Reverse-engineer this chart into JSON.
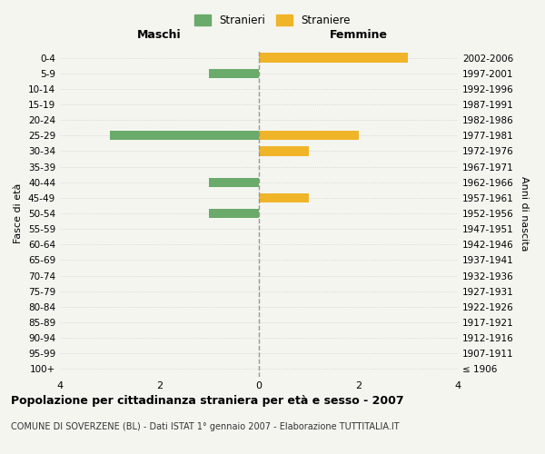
{
  "age_groups": [
    "100+",
    "95-99",
    "90-94",
    "85-89",
    "80-84",
    "75-79",
    "70-74",
    "65-69",
    "60-64",
    "55-59",
    "50-54",
    "45-49",
    "40-44",
    "35-39",
    "30-34",
    "25-29",
    "20-24",
    "15-19",
    "10-14",
    "5-9",
    "0-4"
  ],
  "birth_years": [
    "≤ 1906",
    "1907-1911",
    "1912-1916",
    "1917-1921",
    "1922-1926",
    "1927-1931",
    "1932-1936",
    "1937-1941",
    "1942-1946",
    "1947-1951",
    "1952-1956",
    "1957-1961",
    "1962-1966",
    "1967-1971",
    "1972-1976",
    "1977-1981",
    "1982-1986",
    "1987-1991",
    "1992-1996",
    "1997-2001",
    "2002-2006"
  ],
  "males": [
    0,
    0,
    0,
    0,
    0,
    0,
    0,
    0,
    0,
    0,
    1,
    0,
    1,
    0,
    0,
    3,
    0,
    0,
    0,
    1,
    0
  ],
  "females": [
    0,
    0,
    0,
    0,
    0,
    0,
    0,
    0,
    0,
    0,
    0,
    1,
    0,
    0,
    1,
    2,
    0,
    0,
    0,
    0,
    3
  ],
  "male_color": "#6aaa6a",
  "female_color": "#f0b429",
  "background_color": "#f5f5f0",
  "xlim": 4,
  "title": "Popolazione per cittadinanza straniera per età e sesso - 2007",
  "subtitle": "COMUNE DI SOVERZENE (BL) - Dati ISTAT 1° gennaio 2007 - Elaborazione TUTTITALIA.IT",
  "left_label": "Maschi",
  "right_label": "Femmine",
  "ylabel": "Fasce di età",
  "y2label": "Anni di nascita",
  "legend_male": "Stranieri",
  "legend_female": "Straniere"
}
